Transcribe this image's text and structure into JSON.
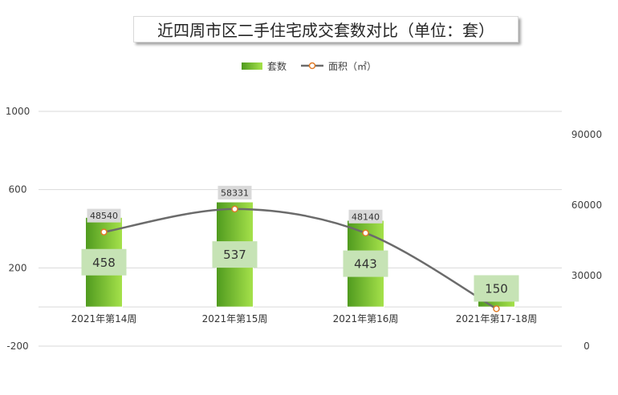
{
  "chart_data": {
    "type": "bar",
    "title": "近四周市区二手住宅成交套数对比（单位：套）",
    "categories": [
      "2021年第14周",
      "2021年第15周",
      "2021年第16周",
      "2021年第17-18周"
    ],
    "series": [
      {
        "name": "套数",
        "type": "bar",
        "axis": "left",
        "values": [
          458,
          537,
          443,
          150
        ]
      },
      {
        "name": "面积（㎡）",
        "type": "line",
        "axis": "right",
        "values": [
          48540,
          58331,
          48140,
          15877
        ]
      }
    ],
    "y_left": {
      "min": -200,
      "max": 1000,
      "ticks": [
        1000,
        600,
        200,
        -200
      ]
    },
    "y_right": {
      "min": 0,
      "max": 90000,
      "ticks": [
        90000,
        60000,
        30000,
        0
      ]
    },
    "legend_position": "top-center",
    "grid": true,
    "colors": {
      "bar_dark": "#4f9a1e",
      "bar_light": "#a6e24b",
      "line": "#6b6b6b",
      "marker_stroke": "#e07b28",
      "bar_label_bg": "#c6e3b5",
      "area_label_bg": "#d9d9d9"
    }
  }
}
